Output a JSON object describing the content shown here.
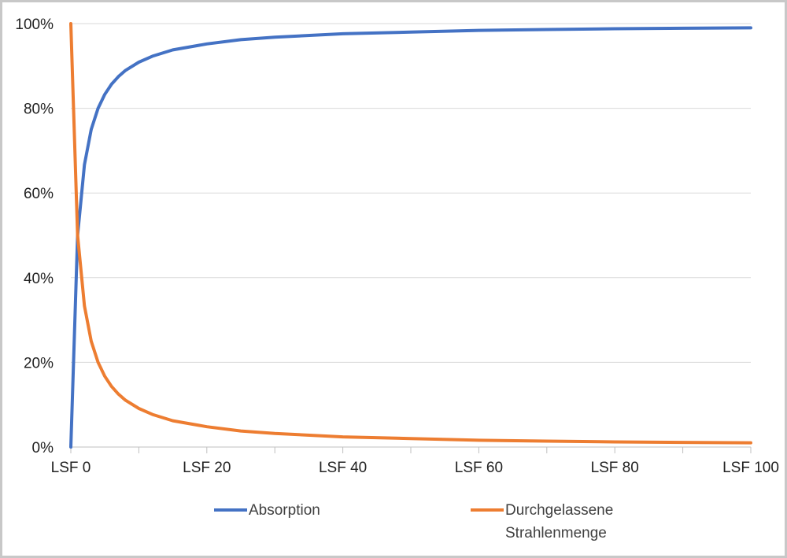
{
  "chart_data": {
    "type": "line",
    "x_ticks": [
      "LSF 0",
      "LSF 20",
      "LSF 40",
      "LSF 60",
      "LSF 80",
      "LSF 100"
    ],
    "xlim": [
      0,
      100
    ],
    "ylim": [
      0,
      100
    ],
    "y_ticks": [
      "0%",
      "20%",
      "40%",
      "60%",
      "80%",
      "100%"
    ],
    "grid": true,
    "legend_position": "bottom",
    "series": [
      {
        "name": "Absorption",
        "color": "#4472C4",
        "x": [
          0,
          1,
          2,
          3,
          4,
          5,
          6,
          7,
          8,
          10,
          12,
          15,
          20,
          25,
          30,
          40,
          50,
          60,
          70,
          80,
          90,
          100
        ],
        "y": [
          0,
          50,
          66.7,
          75,
          80,
          83.3,
          85.7,
          87.5,
          88.9,
          90.9,
          92.3,
          93.8,
          95.2,
          96.2,
          96.8,
          97.6,
          98.0,
          98.4,
          98.6,
          98.8,
          98.9,
          99.0
        ]
      },
      {
        "name": "Durchgelassene Strahlenmenge",
        "legend_lines": [
          "Durchgelassene",
          "Strahlenmenge"
        ],
        "color": "#ED7D31",
        "x": [
          0,
          1,
          2,
          3,
          4,
          5,
          6,
          7,
          8,
          10,
          12,
          15,
          20,
          25,
          30,
          40,
          50,
          60,
          70,
          80,
          90,
          100
        ],
        "y": [
          100,
          50,
          33.3,
          25,
          20,
          16.7,
          14.3,
          12.5,
          11.1,
          9.1,
          7.7,
          6.2,
          4.8,
          3.8,
          3.2,
          2.4,
          2.0,
          1.6,
          1.4,
          1.2,
          1.1,
          1.0
        ]
      }
    ]
  }
}
